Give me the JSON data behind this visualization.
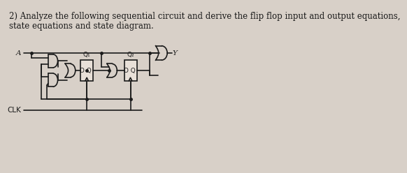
{
  "title_line1": "2) Analyze the following sequential circuit and derive the flip flop input and output equations,",
  "title_line2": "state equations and state diagram.",
  "bg_color": "#d8d0c8",
  "line_color": "#1a1a1a",
  "text_color": "#1a1a1a",
  "label_A": "A",
  "label_Y": "Y",
  "label_CLK": "CLK",
  "label_Q1": "Q₁",
  "label_Q2": "Q₂",
  "label_DQ": "D Q",
  "title_fontsize": 8.5,
  "label_fontsize": 7.5
}
